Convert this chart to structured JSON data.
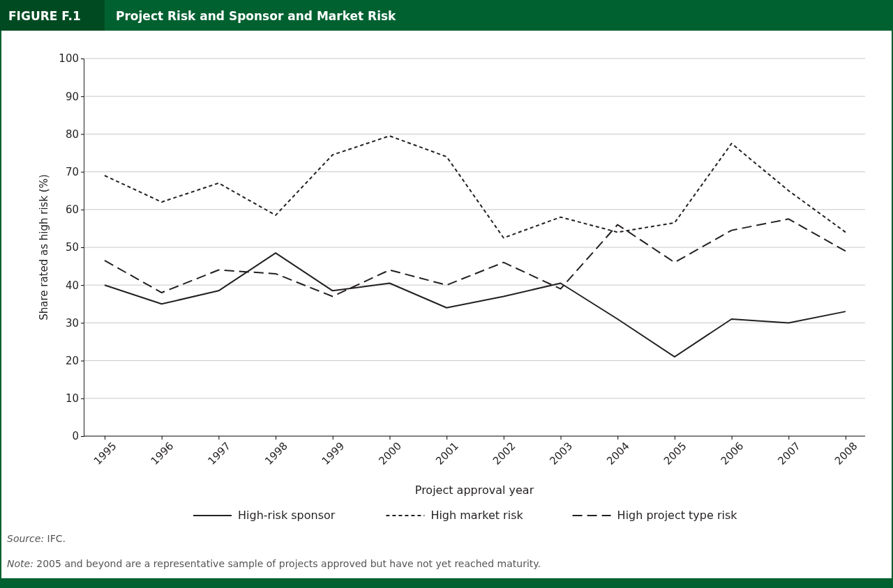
{
  "chart_data": {
    "type": "line",
    "title": "Project Risk and Sponsor and Market Risk",
    "subtitle": "FIGURE F.1",
    "xlabel": "Project approval year",
    "ylabel": "Share rated as high risk (%)",
    "categories": [
      "1995",
      "1996",
      "1997",
      "1998",
      "1999",
      "2000",
      "2001",
      "2002",
      "2003",
      "2004",
      "2005",
      "2006",
      "2007",
      "2008"
    ],
    "series": [
      {
        "name": "High-risk sponsor",
        "color": "#231f20",
        "line_style": "solid",
        "values": [
          40,
          35,
          38.5,
          48.5,
          38.5,
          40.5,
          34,
          37,
          40.5,
          31,
          21,
          31,
          30,
          33
        ]
      },
      {
        "name": "High market risk",
        "color": "#231f20",
        "line_style": "dotted",
        "values": [
          69,
          62,
          67,
          58.5,
          74.5,
          79.5,
          74,
          52.5,
          58,
          54,
          56.5,
          77.5,
          65,
          54
        ]
      },
      {
        "name": "High project type risk",
        "color": "#231f20",
        "line_style": "dashed",
        "values": [
          46.5,
          38,
          44,
          43,
          37,
          44,
          40,
          46,
          39,
          56,
          46,
          54.5,
          57.5,
          49
        ]
      }
    ],
    "ylim": [
      0,
      100
    ],
    "yticks": [
      0,
      10,
      20,
      30,
      40,
      50,
      60,
      70,
      80,
      90,
      100
    ],
    "grid": "y",
    "legend": "bottom",
    "marker": "none",
    "annotations": [
      "Source: IFC.",
      "Note: 2005 and beyond are a representative sample of projects approved but have not yet reached maturity."
    ]
  }
}
